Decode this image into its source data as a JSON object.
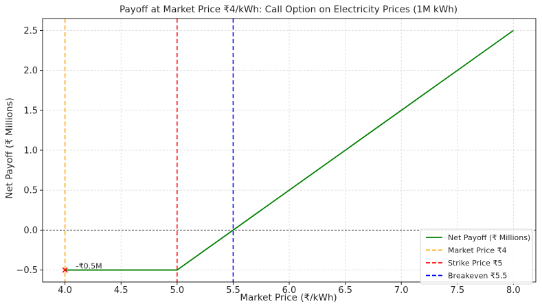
{
  "chart_data": {
    "type": "line",
    "title": "Payoff at Market Price ₹4/kWh: Call Option on Electricity Prices (1M kWh)",
    "xlabel": "Market Price (₹/kWh)",
    "ylabel": "Net Payoff (₹ Millions)",
    "xlim": [
      3.8,
      8.2
    ],
    "ylim": [
      -0.65,
      2.65
    ],
    "x_ticks": [
      4.0,
      4.5,
      5.0,
      5.5,
      6.0,
      6.5,
      7.0,
      7.5,
      8.0
    ],
    "x_tick_labels": [
      "4.0",
      "4.5",
      "5.0",
      "5.5",
      "6.0",
      "6.5",
      "7.0",
      "7.5",
      "8.0"
    ],
    "y_ticks": [
      -0.5,
      0.0,
      0.5,
      1.0,
      1.5,
      2.0,
      2.5
    ],
    "y_tick_labels": [
      "−0.5",
      "0.0",
      "0.5",
      "1.0",
      "1.5",
      "2.0",
      "2.5"
    ],
    "grid": true,
    "legend_position": "lower-right",
    "series": [
      {
        "name": "Net Payoff (₹ Millions)",
        "kind": "line",
        "style": "solid",
        "color": "#008000",
        "x": [
          4.0,
          5.0,
          8.0
        ],
        "y": [
          -0.5,
          -0.5,
          2.5
        ]
      }
    ],
    "reference_lines": [
      {
        "name": "Market Price ₹4",
        "orientation": "vertical",
        "value": 4.0,
        "color": "#ffa500",
        "style": "dashed"
      },
      {
        "name": "Strike Price ₹5",
        "orientation": "vertical",
        "value": 5.0,
        "color": "#ff0000",
        "style": "dashed"
      },
      {
        "name": "Breakeven ₹5.5",
        "orientation": "vertical",
        "value": 5.5,
        "color": "#0000ff",
        "style": "dashed"
      }
    ],
    "zero_line": {
      "value": 0.0,
      "color": "#000000",
      "style": "dashed"
    },
    "markers": [
      {
        "x": 4.0,
        "y": -0.5,
        "symbol": "x",
        "color": "#ff0000",
        "label": "-₹0.5M"
      }
    ]
  }
}
